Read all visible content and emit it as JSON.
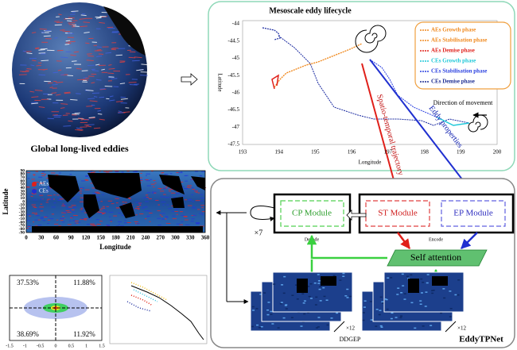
{
  "globe": {
    "caption": "Global long-lived eddies"
  },
  "lifecycle": {
    "title": "Mesoscale eddy lifecycle",
    "yticks": [
      "-44",
      "-44.5",
      "-45",
      "-45.5",
      "-46",
      "-46.5",
      "-47",
      "-47.5"
    ],
    "xticks": [
      "193",
      "194",
      "195",
      "196",
      "197",
      "198",
      "199",
      "200"
    ],
    "x_label": "Longitude",
    "y_label": "Latitude",
    "legend": [
      "AEs Growth phase",
      "AEs Stabilisation phase",
      "AEs Demise phase",
      "CEs Growth phase",
      "CEs Stabilisation phase",
      "CEs Demise phase"
    ],
    "direction": "Direction of movement",
    "arrow_trajectory": "Spatio-temporal trajectory",
    "arrow_properties": "Eddy properties"
  },
  "map": {
    "yticks": [
      "90",
      "80",
      "70",
      "60",
      "50",
      "40",
      "30",
      "20",
      "10",
      "0",
      "-10",
      "-20",
      "-30",
      "-40",
      "-50",
      "-60",
      "-70",
      "-80",
      "-90"
    ],
    "xticks": [
      "0",
      "30",
      "60",
      "90",
      "120",
      "150",
      "180",
      "210",
      "240",
      "270",
      "300",
      "330",
      "360"
    ],
    "y_label": "Latitude",
    "x_label": "Longitude",
    "legend": [
      "AEs",
      "CEs"
    ]
  },
  "quadrant": {
    "values": [
      "37.53%",
      "11.88%",
      "38.69%",
      "11.92%"
    ],
    "xticks": [
      "-1.5",
      "-1",
      "-0.5",
      "0",
      "0.5",
      "1",
      "1.5"
    ]
  },
  "model": {
    "cp": "CP Module",
    "st": "ST Module",
    "ep": "EP Module",
    "repeat": "×7",
    "decode": "Decode",
    "encode": "Encode",
    "attention": "Self attention",
    "stack_counts": [
      "×12",
      "×12"
    ],
    "data_label": "DDGEP",
    "name": "EddyTPNet"
  }
}
